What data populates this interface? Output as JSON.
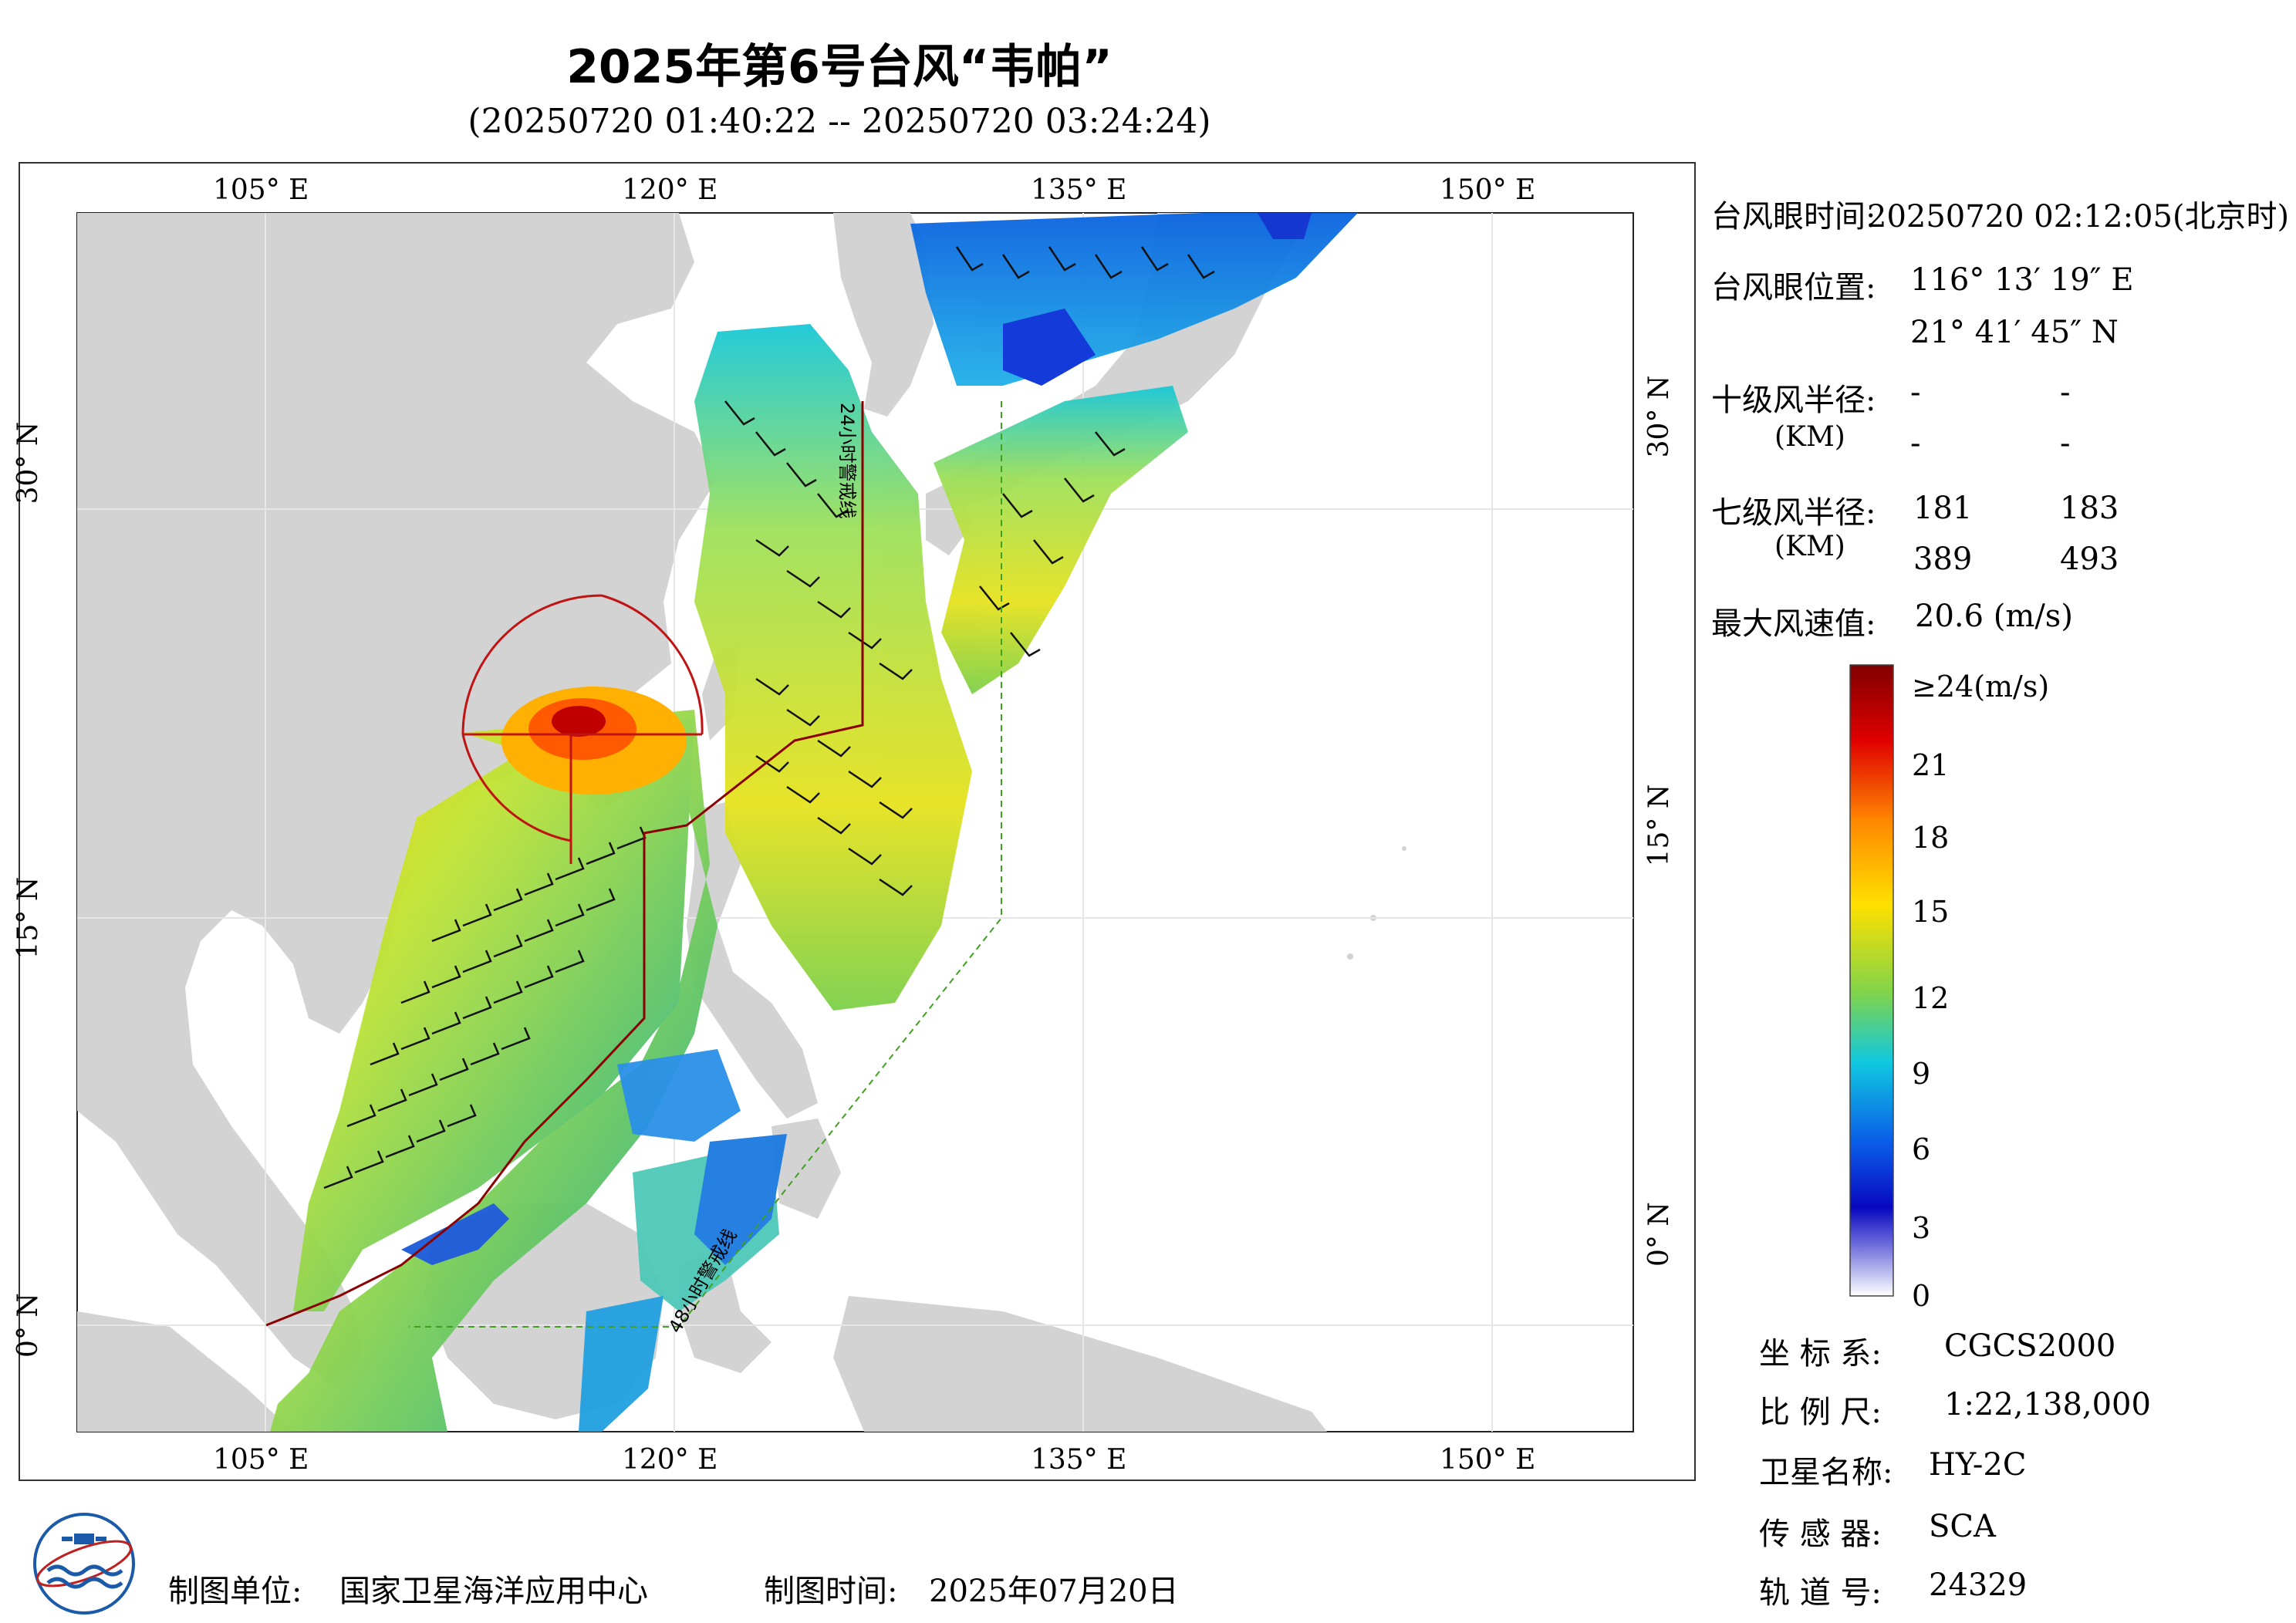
{
  "title": "2025年第6号台风“韦帕”",
  "subtitle": "(20250720 01:40:22 -- 20250720 03:24:24)",
  "axis": {
    "lon_ticks": [
      "105° E",
      "120° E",
      "135° E",
      "150° E"
    ],
    "lat_ticks": [
      "30° N",
      "15° N",
      "0° N"
    ]
  },
  "map_labels": {
    "track_24h": "24小时警戒线",
    "track_48h": "48小时警戒线"
  },
  "info": {
    "eye_time_label": "台风眼时间:",
    "eye_time_value": "20250720 02:12:05(北京时)",
    "eye_pos_label": "台风眼位置:",
    "eye_lon": "116° 13′ 19″ E",
    "eye_lat": "21° 41′ 45″ N",
    "r10_label": "十级风半径:",
    "r10_unit": "(KM)",
    "r10_values": [
      "-",
      "-",
      "-",
      "-"
    ],
    "r7_label": "七级风半径:",
    "r7_unit": "(KM)",
    "r7_values": [
      "181",
      "183",
      "389",
      "493"
    ],
    "max_wind_label": "最大风速值:",
    "max_wind_value": "20.6 (m/s)"
  },
  "colorbar": {
    "labels": [
      "≥24(m/s)",
      "21",
      "18",
      "15",
      "12",
      "9",
      "6",
      "3",
      "0"
    ],
    "colors": [
      "#8b0000",
      "#ff2000",
      "#ff9a00",
      "#ffe600",
      "#7cd04a",
      "#18c8d8",
      "#0a63e0",
      "#1010c0",
      "#ffffff"
    ]
  },
  "meta": [
    {
      "label": "坐 标 系:",
      "value": "CGCS2000"
    },
    {
      "label": "比 例 尺:",
      "value": "1:22,138,000"
    },
    {
      "label": "卫星名称:",
      "value": "HY-2C"
    },
    {
      "label": "传 感 器:",
      "value": "SCA"
    },
    {
      "label": "轨 道 号:",
      "value": "24329"
    }
  ],
  "footer": {
    "unit_label": "制图单位:",
    "unit_value": "国家卫星海洋应用中心",
    "time_label": "制图时间:",
    "time_value": "2025年07月20日"
  }
}
